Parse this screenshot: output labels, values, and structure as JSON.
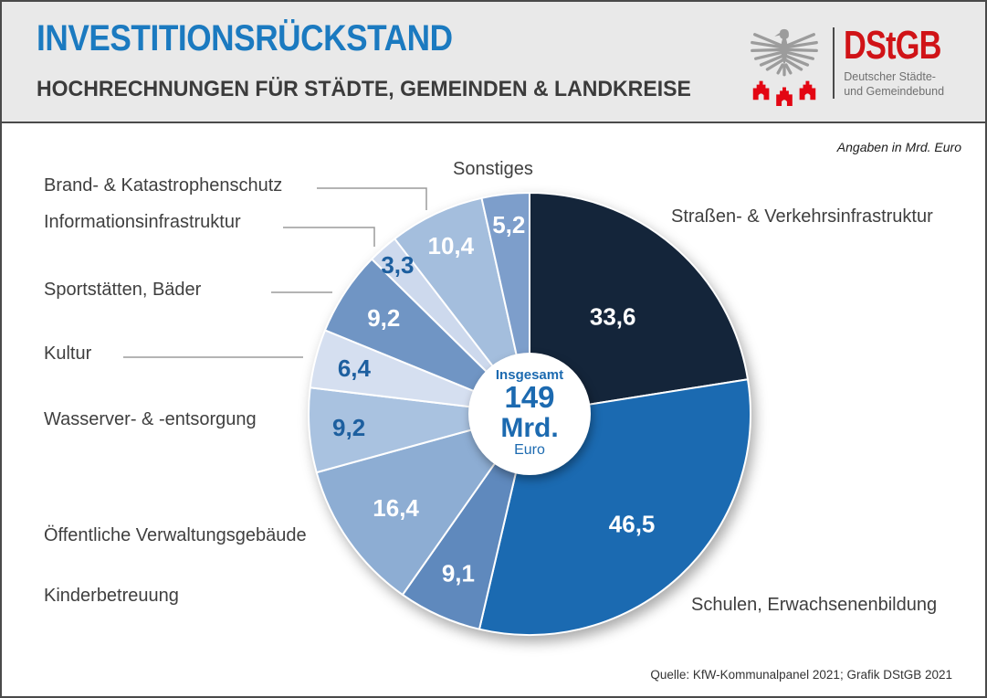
{
  "header": {
    "title": "INVESTITIONSRÜCKSTAND",
    "subtitle": "HOCHRECHNUNGEN FÜR STÄDTE, GEMEINDEN & LANDKREISE",
    "title_color": "#1b7ac0",
    "logo": {
      "abbr": "DStGB",
      "name_line1": "Deutscher Städte-",
      "name_line2": "und Gemeindebund",
      "abbr_color": "#d01317",
      "eagle_color": "#9c9c9c",
      "towers_color": "#e30613"
    }
  },
  "note": "Angaben in Mrd. Euro",
  "source": "Quelle: KfW-Kommunalpanel 2021; Grafik DStGB 2021",
  "chart_data": {
    "type": "pie",
    "title": "Investitionsrückstand",
    "subtitle": "Hochrechnungen für Städte, Gemeinden & Landkreise",
    "unit": "Mrd. Euro",
    "total": 149,
    "total_label": {
      "line1": "Insgesamt",
      "value": "149",
      "unit": "Mrd.",
      "currency": "Euro"
    },
    "start_angle": "12 o'clock, clockwise",
    "legend_position": "around",
    "slices": [
      {
        "label": "Straßen- & Verkehrsinfrastruktur",
        "value": 33.6,
        "value_label": "33,6",
        "color": "#14253a",
        "value_text_color": "#ffffff"
      },
      {
        "label": "Schulen, Erwachsenenbildung",
        "value": 46.5,
        "value_label": "46,5",
        "color": "#1b6ab1",
        "value_text_color": "#ffffff"
      },
      {
        "label": "Kinderbetreuung",
        "value": 9.1,
        "value_label": "9,1",
        "color": "#5f89bd",
        "value_text_color": "#ffffff"
      },
      {
        "label": "Öffentliche Verwaltungsgebäude",
        "value": 16.4,
        "value_label": "16,4",
        "color": "#8dadd3",
        "value_text_color": "#ffffff"
      },
      {
        "label": "Wasserver- & -entsorgung",
        "value": 9.2,
        "value_label": "9,2",
        "color": "#a9c2e0",
        "value_text_color": "#1d5f9f"
      },
      {
        "label": "Kultur",
        "value": 6.4,
        "value_label": "6,4",
        "color": "#d5dff0",
        "value_text_color": "#1d5f9f"
      },
      {
        "label": "Sportstätten, Bäder",
        "value": 9.2,
        "value_label": "9,2",
        "color": "#7095c4",
        "value_text_color": "#ffffff"
      },
      {
        "label": "Informationsinfrastruktur",
        "value": 3.3,
        "value_label": "3,3",
        "color": "#cdd9ed",
        "value_text_color": "#1d5f9f"
      },
      {
        "label": "Brand- & Katastrophenschutz",
        "value": 10.4,
        "value_label": "10,4",
        "color": "#a4bedd",
        "value_text_color": "#ffffff"
      },
      {
        "label": "Sonstiges",
        "value": 5.2,
        "value_label": "5,2",
        "color": "#7d9ecb",
        "value_text_color": "#ffffff"
      }
    ]
  }
}
